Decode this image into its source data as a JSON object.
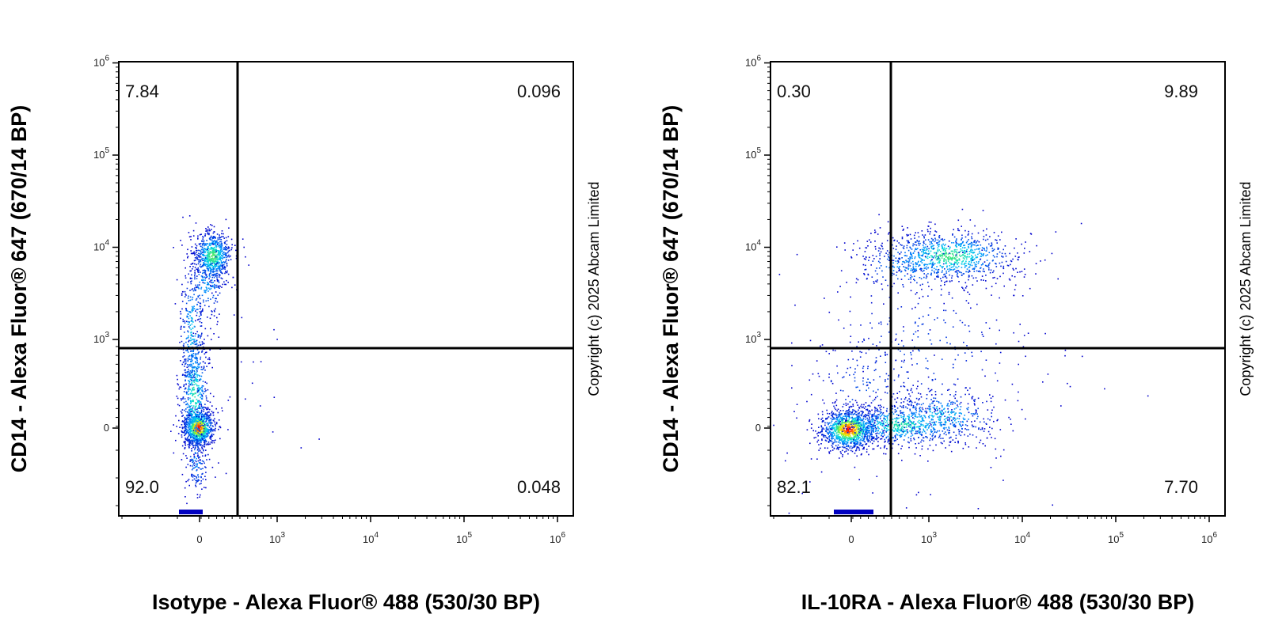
{
  "chart_data": [
    {
      "type": "scatter",
      "subtype": "flow-cytometry-density-dot-plot",
      "xlabel": "Isotype - Alexa Fluor® 488 (530/30 BP)",
      "ylabel": "CD14 - Alexa Fluor® 647 (670/14 BP)",
      "x_scale": "biexponential",
      "y_scale": "biexponential",
      "x_ticks": [
        "0",
        "10^3",
        "10^4",
        "10^5",
        "10^6"
      ],
      "y_ticks": [
        "0",
        "10^3",
        "10^4",
        "10^5",
        "10^6"
      ],
      "quadrant_gate": {
        "x": 350,
        "y": 1000
      },
      "quadrants": {
        "upper_left": "7.84",
        "upper_right": "0.096",
        "lower_left": "92.0",
        "lower_right": "0.048"
      },
      "populations": [
        {
          "center_x": 0,
          "center_y": 0,
          "note": "main negative cluster"
        },
        {
          "center_x": 120,
          "center_y": 6500,
          "note": "CD14+ cluster"
        }
      ],
      "grid": false,
      "copyright": "Copyright (c) 2025 Abcam Limited"
    },
    {
      "type": "scatter",
      "subtype": "flow-cytometry-density-dot-plot",
      "xlabel": "IL-10RA - Alexa Fluor® 488 (530/30 BP)",
      "ylabel": "CD14 - Alexa Fluor® 647 (670/14 BP)",
      "x_scale": "biexponential",
      "y_scale": "biexponential",
      "x_ticks": [
        "0",
        "10^3",
        "10^4",
        "10^5",
        "10^6"
      ],
      "y_ticks": [
        "0",
        "10^3",
        "10^4",
        "10^5",
        "10^6"
      ],
      "quadrant_gate": {
        "x": 350,
        "y": 1000
      },
      "quadrants": {
        "upper_left": "0.30",
        "upper_right": "9.89",
        "lower_left": "82.1",
        "lower_right": "7.70"
      },
      "populations": [
        {
          "center_x": -20,
          "center_y": 0,
          "note": "main negative cluster"
        },
        {
          "center_x": 1200,
          "center_y": 80,
          "note": "IL-10RA+ CD14- tail"
        },
        {
          "center_x": 2000,
          "center_y": 7000,
          "note": "IL-10RA+ CD14+ cluster"
        }
      ],
      "grid": false,
      "copyright": "Copyright (c) 2025 Abcam Limited"
    }
  ],
  "colors": {
    "density_low": "#0000d0",
    "density_mid_low": "#00a0ff",
    "density_mid": "#30e0a0",
    "density_mid_high": "#f0f000",
    "density_high": "#ff0000",
    "gate_line": "#000000"
  }
}
